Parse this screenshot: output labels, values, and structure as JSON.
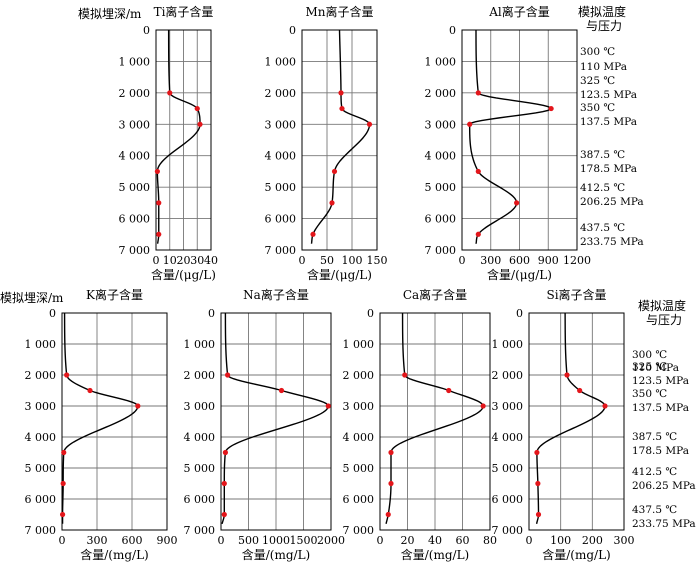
{
  "depth_label": "模拟埋深/m",
  "cond_title_1": "模拟温度",
  "cond_title_2": "与压力",
  "conditions": [
    {
      "temp": "300 ℃",
      "pressure": "110 MPa"
    },
    {
      "temp": "325 ℃",
      "pressure": "123.5 MPa"
    },
    {
      "temp": "350 ℃",
      "pressure": "137.5 MPa"
    },
    {
      "temp": "387.5 ℃",
      "pressure": "178.5 MPa"
    },
    {
      "temp": "412.5 ℃",
      "pressure": "206.25 MPa"
    },
    {
      "temp": "437.5 ℃",
      "pressure": "233.75 MPa"
    }
  ],
  "y_ticks": [
    0,
    1000,
    2000,
    3000,
    4000,
    5000,
    6000,
    7000
  ],
  "y_tick_labels": [
    "0",
    "1 000",
    "2 000",
    "3 000",
    "4 000",
    "5 000",
    "6 000",
    "7 000"
  ],
  "chart_data": [
    {
      "type": "line",
      "title": "Ti离子含量",
      "xlabel": "含量/(μg/L)",
      "xlim": [
        0,
        40
      ],
      "x_ticks": [
        0,
        10,
        20,
        30,
        40
      ],
      "depth": [
        2000,
        2500,
        3000,
        4500,
        5500,
        6500
      ],
      "values": [
        10,
        30,
        32,
        1,
        2,
        2
      ]
    },
    {
      "type": "line",
      "title": "Mn离子含量",
      "xlabel": "含量/(μg/L)",
      "xlim": [
        0,
        150
      ],
      "x_ticks": [
        0,
        50,
        100,
        150
      ],
      "depth": [
        2000,
        2500,
        3000,
        4500,
        5500,
        6500
      ],
      "values": [
        78,
        80,
        135,
        65,
        60,
        22
      ]
    },
    {
      "type": "line",
      "title": "Al离子含量",
      "xlabel": "含量/(μg/L)",
      "xlim": [
        0,
        1200
      ],
      "x_ticks": [
        0,
        300,
        600,
        900,
        1200
      ],
      "depth": [
        2000,
        2500,
        3000,
        4500,
        5500,
        6500
      ],
      "values": [
        170,
        930,
        80,
        170,
        570,
        170
      ]
    },
    {
      "type": "line",
      "title": "K离子含量",
      "xlabel": "含量/(mg/L)",
      "xlim": [
        0,
        900
      ],
      "x_ticks": [
        0,
        300,
        600,
        900
      ],
      "depth": [
        2000,
        2500,
        3000,
        4500,
        5500,
        6500
      ],
      "values": [
        40,
        240,
        650,
        15,
        10,
        5
      ]
    },
    {
      "type": "line",
      "title": "Na离子含量",
      "xlabel": "含量/(mg/L)",
      "xlim": [
        0,
        2000
      ],
      "x_ticks": [
        0,
        500,
        1000,
        1500,
        2000
      ],
      "depth": [
        2000,
        2500,
        3000,
        4500,
        5500,
        6500
      ],
      "values": [
        120,
        1100,
        1950,
        80,
        60,
        60
      ]
    },
    {
      "type": "line",
      "title": "Ca离子含量",
      "xlabel": "含量/(mg/L)",
      "xlim": [
        0,
        80
      ],
      "x_ticks": [
        0,
        20,
        40,
        60,
        80
      ],
      "depth": [
        2000,
        2500,
        3000,
        4500,
        5500,
        6500
      ],
      "values": [
        18,
        50,
        75,
        8,
        8,
        6
      ]
    },
    {
      "type": "line",
      "title": "Si离子含量",
      "xlabel": "含量/(mg/L)",
      "xlim": [
        0,
        300
      ],
      "x_ticks": [
        0,
        100,
        200,
        300
      ],
      "depth": [
        2000,
        2500,
        3000,
        4500,
        5500,
        6500
      ],
      "values": [
        120,
        160,
        240,
        25,
        28,
        30
      ]
    }
  ]
}
